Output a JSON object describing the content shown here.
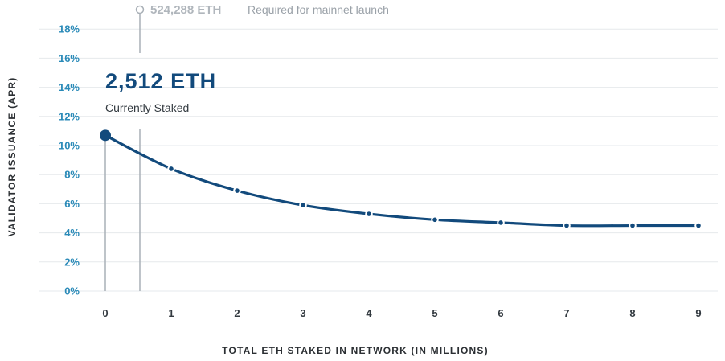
{
  "chart_data": {
    "type": "line",
    "title": "",
    "xlabel": "TOTAL ETH STAKED IN NETWORK (IN MILLIONS)",
    "ylabel": "VALIDATOR ISSUANCE (APR)",
    "x_ticks": [
      "0",
      "1",
      "2",
      "3",
      "4",
      "5",
      "6",
      "7",
      "8",
      "9"
    ],
    "y_ticks": [
      "0%",
      "2%",
      "4%",
      "6%",
      "8%",
      "10%",
      "12%",
      "14%",
      "16%",
      "18%"
    ],
    "xlim": [
      0,
      9.2
    ],
    "ylim": [
      0,
      18
    ],
    "grid": true,
    "series": [
      {
        "x": [
          0,
          1,
          2,
          3,
          4,
          5,
          6,
          7,
          8,
          9
        ],
        "values": [
          10.7,
          8.4,
          6.9,
          5.9,
          5.3,
          4.9,
          4.7,
          4.5,
          4.5,
          4.5
        ]
      }
    ],
    "annotations": {
      "current": {
        "value": "2,512 ETH",
        "label": "Currently Staked",
        "x": 0,
        "y": 10.7
      },
      "mainnet": {
        "value": "524,288 ETH",
        "label": "Required for mainnet launch",
        "x": 0.524288
      }
    }
  }
}
